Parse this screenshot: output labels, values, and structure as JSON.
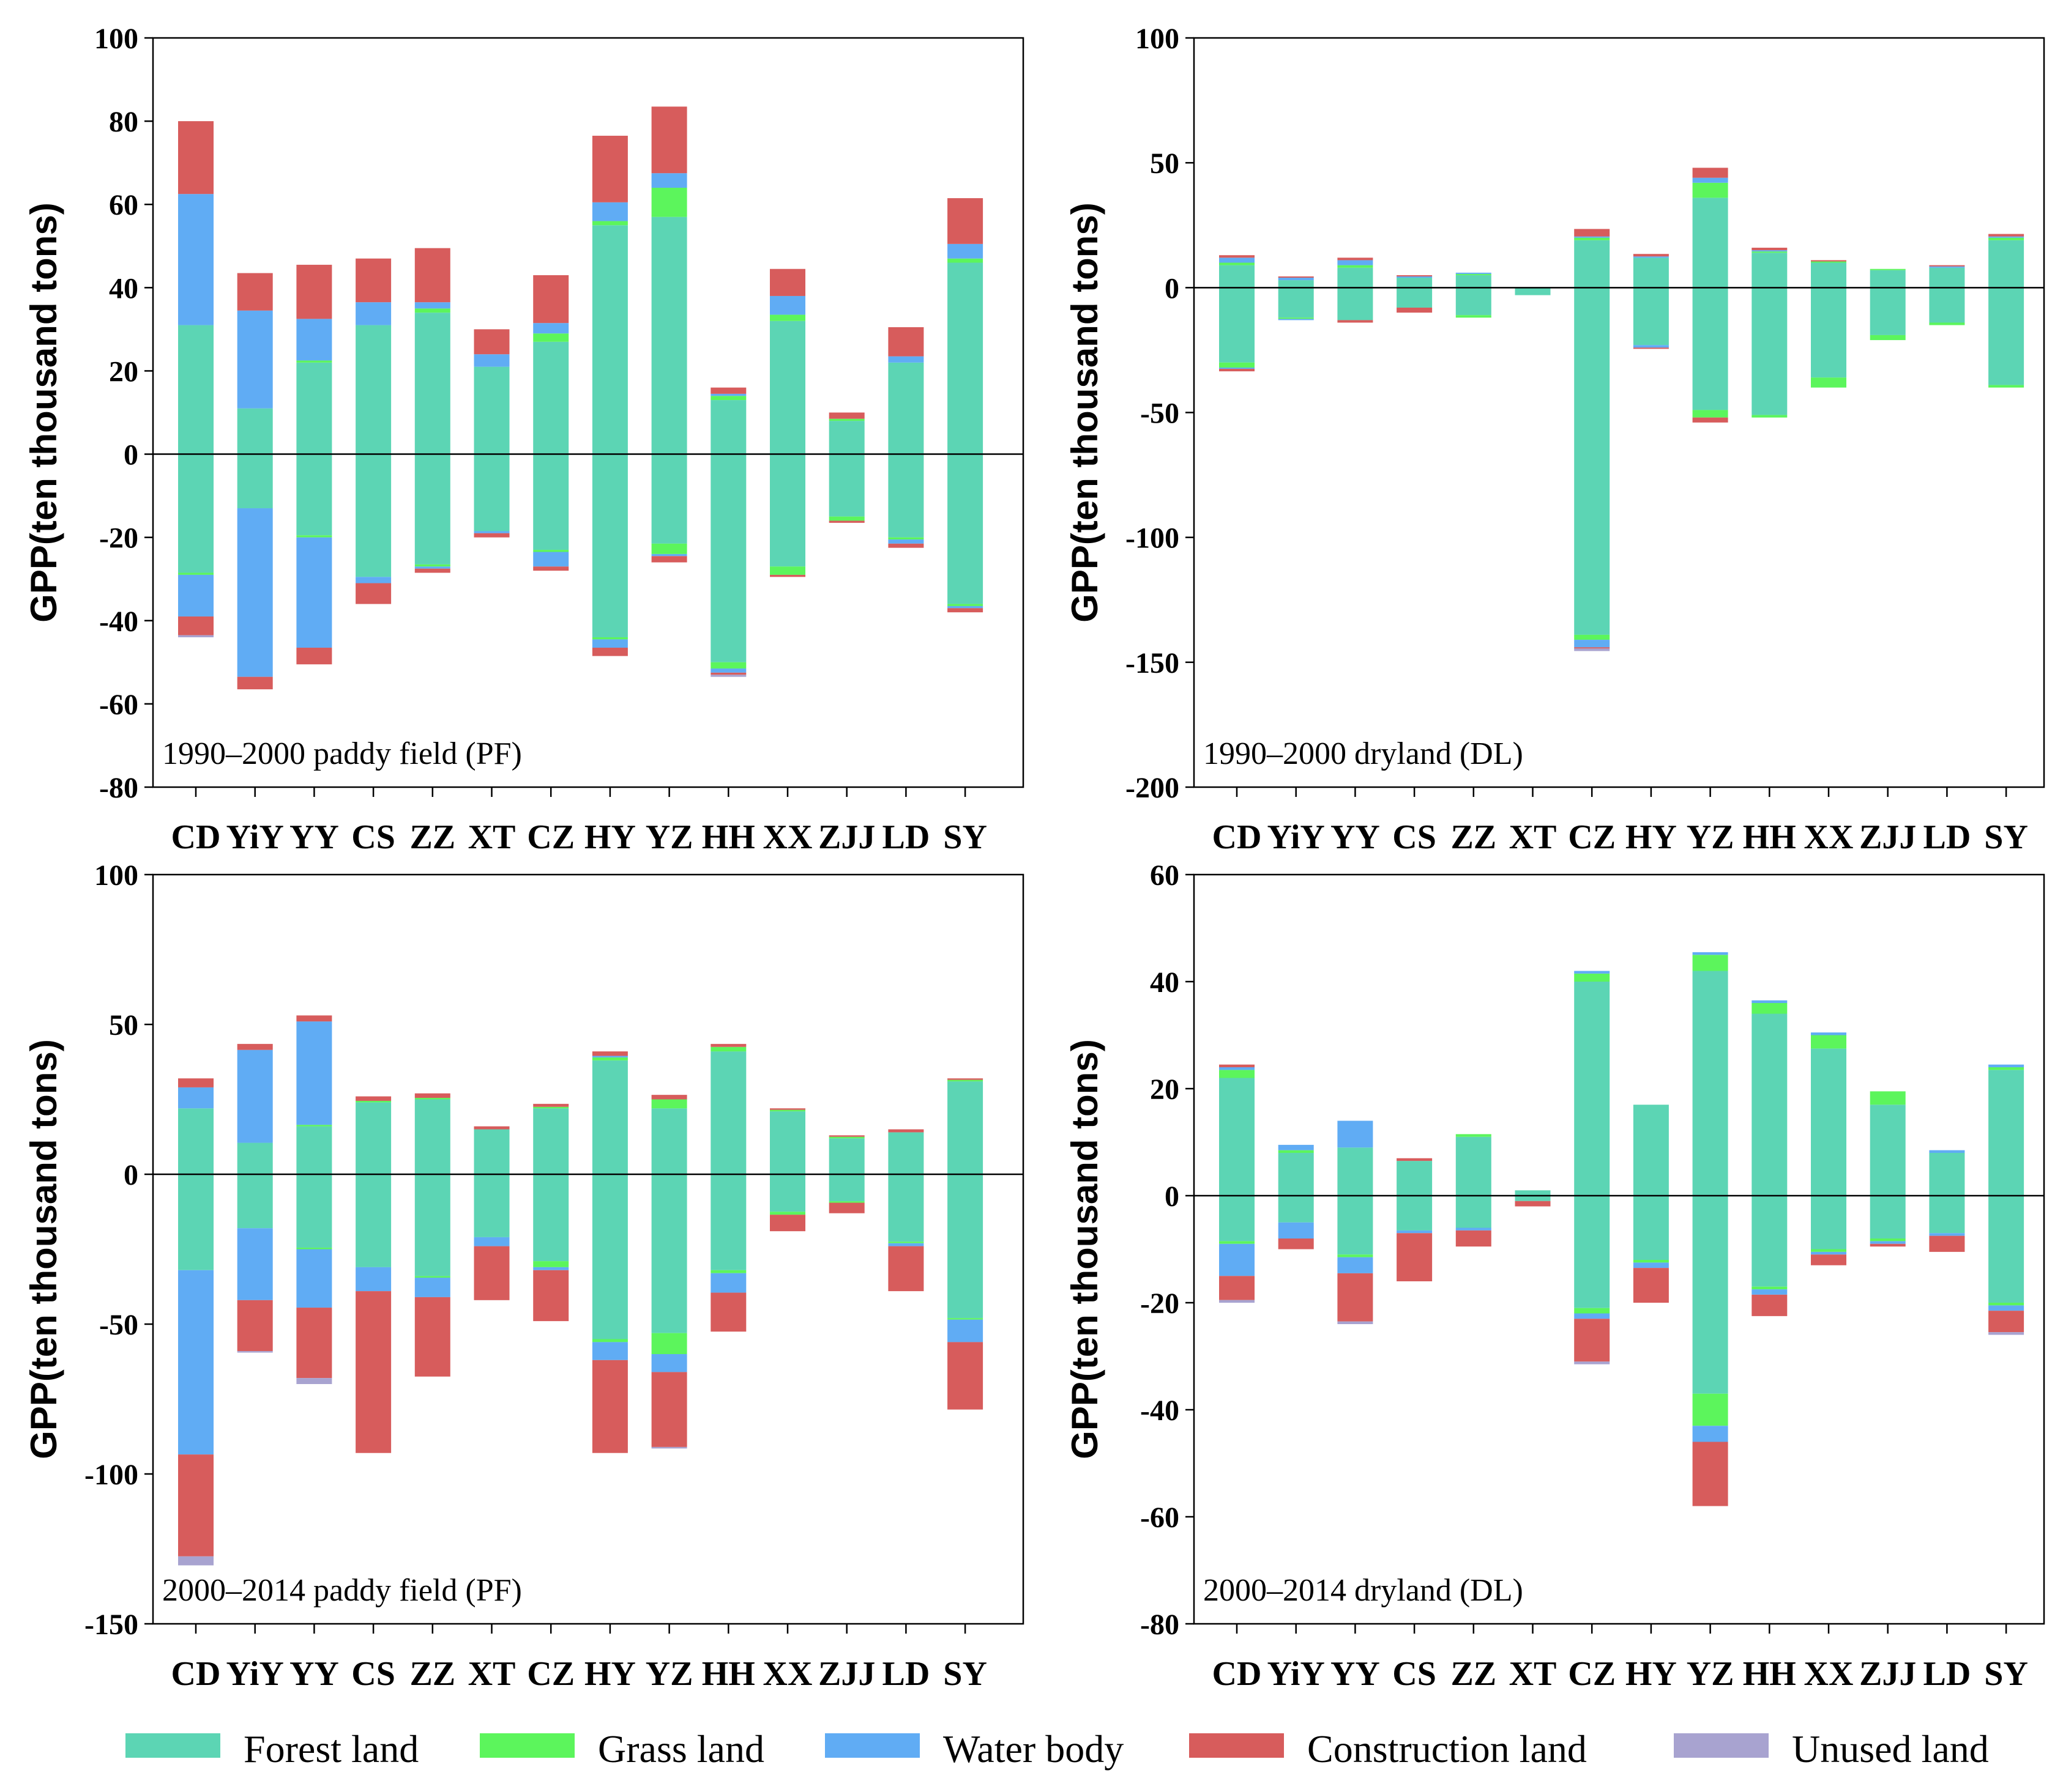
{
  "legend": [
    {
      "name": "Forest land",
      "color": "#5cd5b4"
    },
    {
      "name": "Grass land",
      "color": "#5cf55c"
    },
    {
      "name": "Water body",
      "color": "#60acf4"
    },
    {
      "name": "Construction land",
      "color": "#d75c5c"
    },
    {
      "name": "Unused land",
      "color": "#a8a3d0"
    }
  ],
  "chart_data": [
    {
      "type": "bar",
      "stacked": true,
      "title": "1990–2000 paddy field (PF)",
      "ylabel": "GPP(ten thousand tons)",
      "ylim": [
        -80,
        100
      ],
      "yticks": [
        "100",
        "80",
        "60",
        "40",
        "20",
        "0",
        "-20",
        "-40",
        "-60",
        "-80"
      ],
      "categories": [
        "CD",
        "YiY",
        "YY",
        "CS",
        "ZZ",
        "XT",
        "CZ",
        "HY",
        "YZ",
        "HH",
        "XX",
        "ZJJ",
        "LD",
        "SY"
      ],
      "series": [
        {
          "name": "Forest land",
          "pos": [
            31,
            11,
            22,
            31,
            34,
            21,
            27,
            55,
            57,
            13,
            32,
            8,
            22,
            46
          ],
          "neg": [
            -28.5,
            -13,
            -19.5,
            -29.5,
            -26.5,
            -18.5,
            -23,
            -44,
            -21.5,
            -50,
            -27,
            -15,
            -20,
            -36
          ]
        },
        {
          "name": "Grass land",
          "pos": [
            0,
            0,
            0.5,
            0,
            1,
            0,
            2,
            1,
            7,
            1,
            1.5,
            0.5,
            0,
            1
          ],
          "neg": [
            -0.5,
            0,
            -0.5,
            0,
            -0.5,
            0,
            -0.5,
            -0.5,
            -2.5,
            -1.5,
            -2,
            -1,
            -0.5,
            -0.5
          ]
        },
        {
          "name": "Water body",
          "pos": [
            31.5,
            23.5,
            10,
            5.5,
            1.5,
            3,
            2.5,
            4.5,
            3.5,
            0.5,
            4.5,
            0,
            1.5,
            3.5
          ],
          "neg": [
            -10,
            -40.5,
            -26.5,
            -1.5,
            -0.5,
            -0.5,
            -3.5,
            -2,
            -0.5,
            -1,
            0,
            0,
            -1,
            -0.5
          ]
        },
        {
          "name": "Construction land",
          "pos": [
            17.5,
            9,
            13,
            10.5,
            13,
            6,
            11.5,
            16,
            16,
            1.5,
            6.5,
            1.5,
            7,
            11
          ],
          "neg": [
            -4.5,
            -3,
            -4,
            -5,
            -1,
            -1,
            -1,
            -2,
            -1.5,
            -0.5,
            -0.5,
            -0.5,
            -1,
            -1
          ]
        },
        {
          "name": "Unused land",
          "pos": [
            0,
            0,
            0,
            0,
            0,
            0,
            0,
            0,
            0,
            0,
            0,
            0,
            0,
            0
          ],
          "neg": [
            -0.5,
            0,
            0,
            0,
            0,
            0,
            0,
            0,
            0,
            -0.5,
            0,
            0,
            0,
            0
          ]
        }
      ]
    },
    {
      "type": "bar",
      "stacked": true,
      "title": "1990–2000 dryland (DL)",
      "ylabel": "GPP(ten thousand tons)",
      "ylim": [
        -200,
        100
      ],
      "yticks": [
        "100",
        "50",
        "0",
        "-50",
        "-100",
        "-150",
        "-200"
      ],
      "categories": [
        "CD",
        "YiY",
        "YY",
        "CS",
        "ZZ",
        "XT",
        "CZ",
        "HY",
        "YZ",
        "HH",
        "XX",
        "ZJJ",
        "LD",
        "SY"
      ],
      "series": [
        {
          "name": "Forest land",
          "pos": [
            9,
            3,
            8,
            4,
            5,
            0,
            19,
            12,
            36,
            14,
            10,
            7,
            8,
            19
          ],
          "neg": [
            -30,
            -12,
            -13,
            -8,
            -11,
            -3,
            -139,
            -23,
            -49,
            -51,
            -36,
            -19,
            -14,
            -39
          ]
        },
        {
          "name": "Grass land",
          "pos": [
            1,
            0,
            1,
            0,
            0.5,
            0,
            1,
            0,
            6,
            0.5,
            0.5,
            0.5,
            0,
            1
          ],
          "neg": [
            -2,
            -0.5,
            0,
            0,
            -1,
            0,
            -2,
            0,
            -3,
            -1,
            -4,
            -2,
            -1,
            -1
          ]
        },
        {
          "name": "Water body",
          "pos": [
            2,
            1,
            2,
            0.5,
            0.5,
            0,
            0.5,
            0.5,
            2,
            0.5,
            0,
            0,
            0.5,
            0.5
          ],
          "neg": [
            -0.5,
            -0.5,
            0,
            0,
            0,
            0,
            -3,
            -1,
            0,
            0,
            0,
            0,
            0,
            0
          ]
        },
        {
          "name": "Construction land",
          "pos": [
            1,
            0.5,
            1,
            0.5,
            0,
            0,
            3,
            1,
            4,
            1,
            0.5,
            0,
            0.5,
            1
          ],
          "neg": [
            -1,
            0,
            -1,
            -2,
            0,
            0,
            -0.5,
            -0.5,
            -2,
            0,
            0,
            0,
            0,
            0
          ]
        },
        {
          "name": "Unused land",
          "pos": [
            0,
            0,
            0,
            0,
            0,
            0,
            0,
            0,
            0,
            0,
            0,
            0,
            0,
            0
          ],
          "neg": [
            0,
            0,
            0,
            0,
            0,
            0,
            -1,
            0,
            0,
            0,
            0,
            0,
            0,
            0
          ]
        }
      ]
    },
    {
      "type": "bar",
      "stacked": true,
      "title": "2000–2014 paddy field (PF)",
      "ylabel": "GPP(ten thousand tons)",
      "ylim": [
        -150,
        100
      ],
      "yticks": [
        "100",
        "50",
        "0",
        "-50",
        "-100",
        "-150"
      ],
      "categories": [
        "CD",
        "YiY",
        "YY",
        "CS",
        "ZZ",
        "XT",
        "CZ",
        "HY",
        "YZ",
        "HH",
        "XX",
        "ZJJ",
        "LD",
        "SY"
      ],
      "series": [
        {
          "name": "Forest land",
          "pos": [
            22,
            10.5,
            16,
            24,
            25,
            15,
            22,
            38,
            22,
            41,
            21,
            12,
            14,
            31
          ],
          "neg": [
            -32,
            -18,
            -24.5,
            -31,
            -34,
            -21,
            -29,
            -55,
            -53,
            -32,
            -12.5,
            -9,
            -22.5,
            -48
          ]
        },
        {
          "name": "Grass land",
          "pos": [
            0,
            0,
            0.5,
            0.5,
            0.5,
            0,
            0.5,
            1,
            3,
            1.5,
            0.5,
            0.5,
            0,
            0.5
          ],
          "neg": [
            0,
            0,
            -0.5,
            0,
            -0.5,
            0,
            -2,
            -1,
            -7,
            -1,
            -1,
            -0.5,
            -0.5,
            -0.5
          ]
        },
        {
          "name": "Water body",
          "pos": [
            7,
            31,
            34.5,
            0,
            0,
            0,
            0,
            0.5,
            0,
            0,
            0,
            0,
            0,
            0
          ],
          "neg": [
            -61.5,
            -24,
            -19.5,
            -8,
            -6.5,
            -3,
            -1,
            -6,
            -6,
            -6.5,
            0,
            0,
            -1,
            -7.5
          ]
        },
        {
          "name": "Construction land",
          "pos": [
            3,
            2,
            2,
            1.5,
            1.5,
            1,
            1,
            1.5,
            1.5,
            1,
            0.5,
            0.5,
            1,
            0.5
          ],
          "neg": [
            -34,
            -17,
            -23.5,
            -54,
            -26.5,
            -18,
            -17,
            -31,
            -25,
            -13,
            -5.5,
            -3.5,
            -15,
            -22.5
          ]
        },
        {
          "name": "Unused land",
          "pos": [
            0,
            0,
            0,
            0,
            0,
            0,
            0,
            0,
            0,
            0,
            0,
            0,
            0,
            0
          ],
          "neg": [
            -3,
            -0.5,
            -2,
            0,
            0,
            0,
            0,
            0,
            -0.5,
            0,
            0,
            0,
            0,
            0
          ]
        }
      ]
    },
    {
      "type": "bar",
      "stacked": true,
      "title": "2000–2014 dryland (DL)",
      "ylabel": "GPP(ten thousand tons)",
      "ylim": [
        -80,
        60
      ],
      "yticks": [
        "60",
        "40",
        "20",
        "0",
        "-20",
        "-40",
        "-60",
        "-80"
      ],
      "categories": [
        "CD",
        "YiY",
        "YY",
        "CS",
        "ZZ",
        "XT",
        "CZ",
        "HY",
        "YZ",
        "HH",
        "XX",
        "ZJJ",
        "LD",
        "SY"
      ],
      "series": [
        {
          "name": "Forest land",
          "pos": [
            22,
            8,
            9,
            6.5,
            11,
            1,
            40,
            17,
            42,
            34,
            27.5,
            17,
            8,
            23.5
          ],
          "neg": [
            -8.5,
            -5,
            -11,
            -6.5,
            -6,
            -1,
            -21,
            -12,
            -37,
            -17,
            -10,
            -8,
            -7,
            -20
          ]
        },
        {
          "name": "Grass land",
          "pos": [
            1.5,
            0.5,
            0,
            0,
            0.5,
            0,
            1.5,
            0,
            3,
            2,
            2.5,
            2.5,
            0,
            0.5
          ],
          "neg": [
            -0.5,
            0,
            -0.5,
            0,
            0,
            0,
            -1,
            -0.5,
            -6,
            -0.5,
            -0.5,
            -0.5,
            0,
            -0.5
          ]
        },
        {
          "name": "Water body",
          "pos": [
            0.5,
            1,
            5,
            0,
            0,
            0,
            0.5,
            0,
            0.5,
            0.5,
            0.5,
            0,
            0.5,
            0.5
          ],
          "neg": [
            -6,
            -3,
            -3,
            -0.5,
            -0.5,
            0,
            -1,
            -1,
            -3,
            -1,
            -0.5,
            -0.5,
            -0.5,
            -1
          ]
        },
        {
          "name": "Construction land",
          "pos": [
            0.5,
            0,
            0,
            0.5,
            0,
            0,
            0,
            0,
            0,
            0,
            0,
            0,
            0,
            0
          ],
          "neg": [
            -4.5,
            -2,
            -9,
            -9,
            -3,
            -1,
            -8,
            -6.5,
            -12,
            -4,
            -2,
            -0.5,
            -3,
            -4
          ]
        },
        {
          "name": "Unused land",
          "pos": [
            0,
            0,
            0,
            0,
            0,
            0,
            0,
            0,
            0,
            0,
            0,
            0,
            0,
            0
          ],
          "neg": [
            -0.5,
            0,
            -0.5,
            0,
            0,
            0,
            -0.5,
            0,
            0,
            0,
            0,
            0,
            0,
            -0.5
          ]
        }
      ]
    }
  ]
}
